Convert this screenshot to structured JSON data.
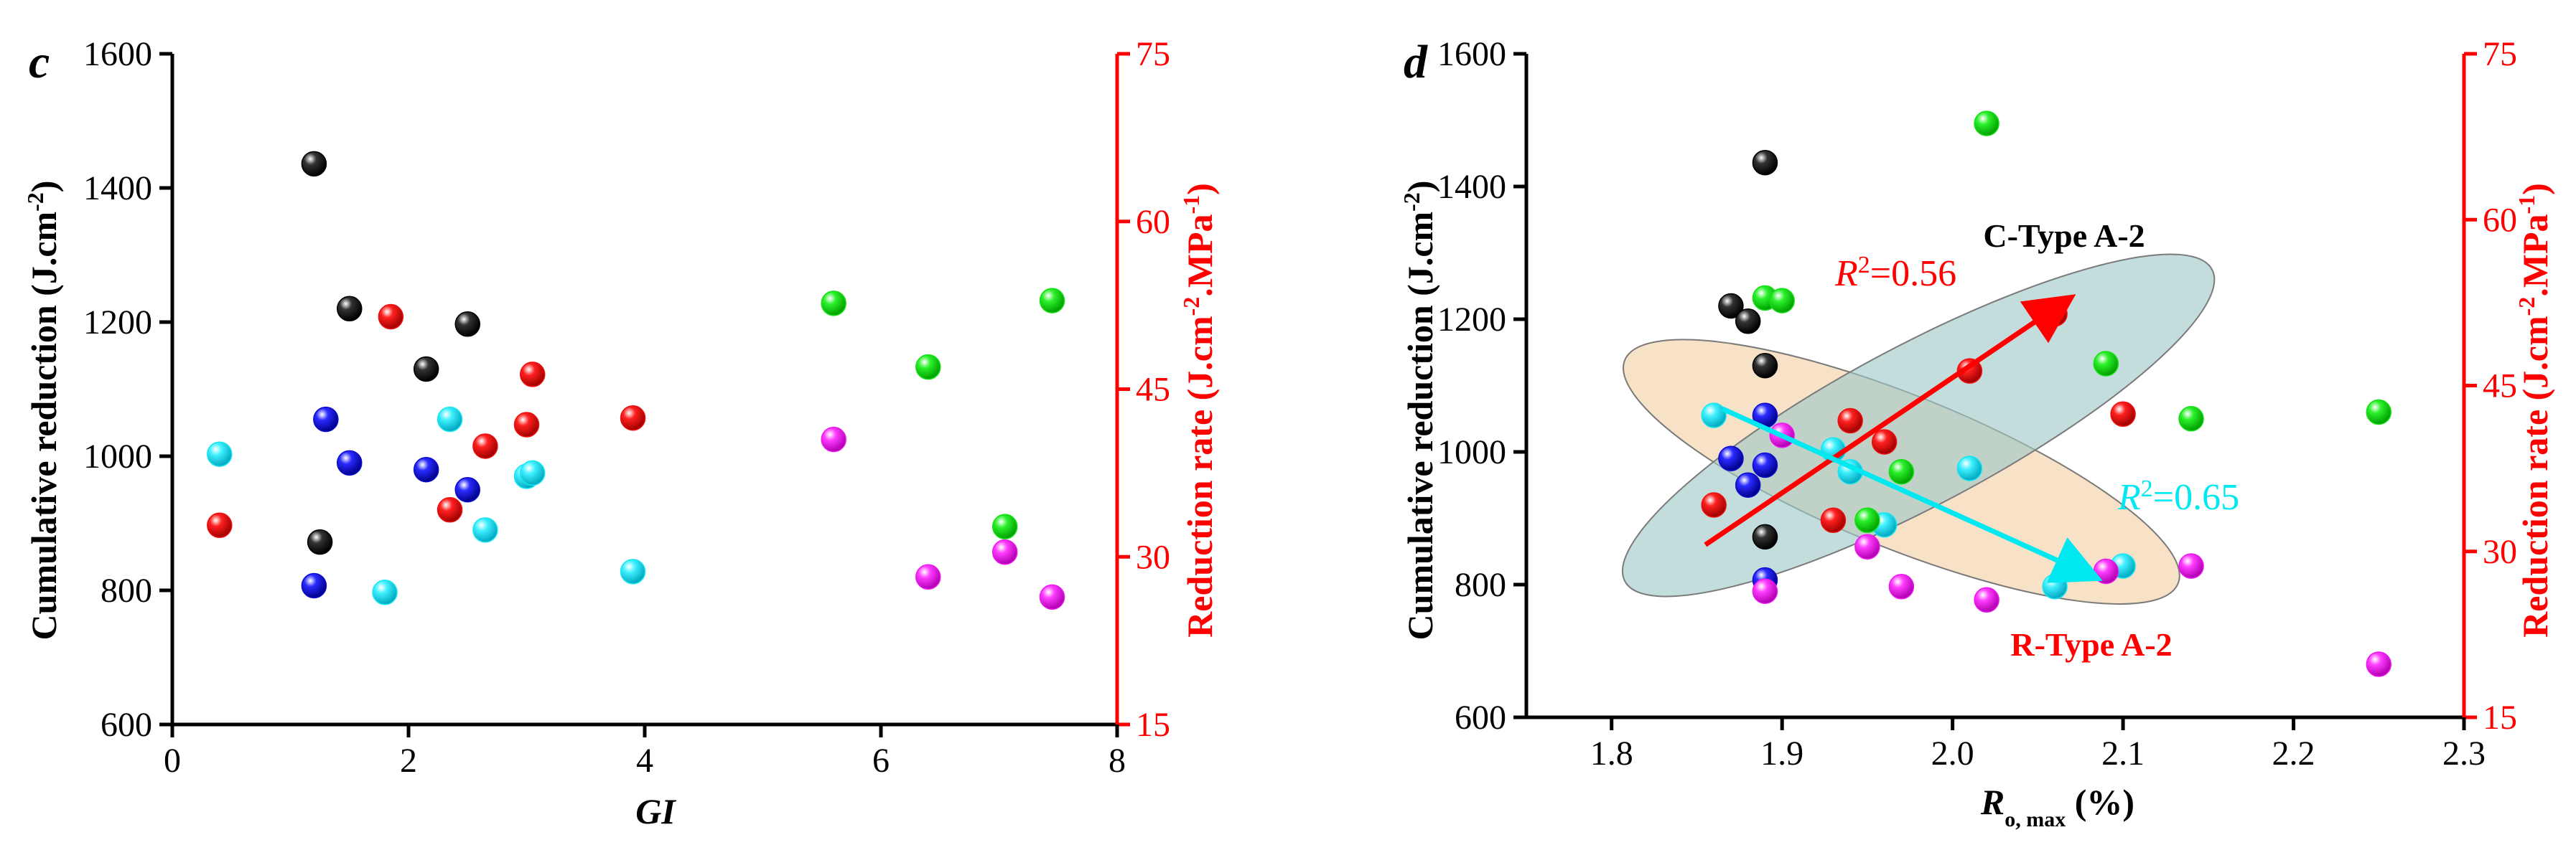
{
  "colors": {
    "black": "#000000",
    "blue": "#0b0bd0",
    "cyan": "#16e8f2",
    "red": "#ee1010",
    "green": "#14e014",
    "magenta": "#ee16ee",
    "axis_right": "#ff0000",
    "ellipse_c": "#9ec8c8",
    "ellipse_r": "#f2cea4",
    "r2_red": "#ff0000",
    "r2_cyan": "#00e8f0"
  },
  "chart_data": [
    {
      "type": "scatter",
      "panel_label": "c",
      "xlabel": "GI",
      "ylabel": "Cumulative reduction (J.cm",
      "ylabel_sup": "-2",
      "ylabel_end": ")",
      "y2label": "Reduction rate (J.cm",
      "y2label_sup1": "-2",
      "y2label_mid": ".MPa",
      "y2label_sup2": "-1",
      "y2label_end": ")",
      "xlim": [
        0,
        8
      ],
      "ylim": [
        600,
        1600
      ],
      "y2lim": [
        15,
        75
      ],
      "xticks": [
        "0",
        "2",
        "4",
        "6",
        "8"
      ],
      "yticks": [
        "600",
        "800",
        "1000",
        "1200",
        "1400",
        "1600"
      ],
      "y2ticks": [
        "15",
        "30",
        "45",
        "60",
        "75"
      ],
      "series": [
        {
          "name": "black",
          "points": [
            [
              1.2,
              1436
            ],
            [
              1.5,
              1220
            ],
            [
              2.15,
              1130
            ],
            [
              2.5,
              1197
            ],
            [
              1.25,
              872
            ]
          ]
        },
        {
          "name": "blue",
          "points": [
            [
              1.3,
              1055
            ],
            [
              1.5,
              990
            ],
            [
              2.15,
              980
            ],
            [
              2.5,
              950
            ],
            [
              1.2,
              807
            ]
          ]
        },
        {
          "name": "cyan",
          "points": [
            [
              0.4,
              1003
            ],
            [
              2.35,
              1055
            ],
            [
              3.0,
              970
            ],
            [
              3.05,
              975
            ],
            [
              2.65,
              890
            ],
            [
              1.8,
              797
            ],
            [
              3.9,
              828
            ]
          ]
        },
        {
          "name": "red",
          "points": [
            [
              0.4,
              897
            ],
            [
              1.85,
              1208
            ],
            [
              3.05,
              1122
            ],
            [
              3.0,
              1047
            ],
            [
              2.65,
              1015
            ],
            [
              2.35,
              920
            ],
            [
              3.9,
              1057
            ]
          ]
        },
        {
          "name": "green",
          "points": [
            [
              5.6,
              1228
            ],
            [
              7.45,
              1232
            ],
            [
              6.4,
              1133
            ],
            [
              7.05,
              895
            ]
          ]
        },
        {
          "name": "magenta",
          "points": [
            [
              5.6,
              1025
            ],
            [
              6.4,
              820
            ],
            [
              7.05,
              857
            ],
            [
              7.45,
              790
            ]
          ]
        }
      ]
    },
    {
      "type": "scatter",
      "panel_label": "d",
      "xlabel": "R",
      "xlabel_sub": "o, max",
      "xlabel_end": " (%)",
      "ylabel": "Cumulative reduction (J.cm",
      "ylabel_sup": "-2",
      "ylabel_end": ")",
      "y2label": "Reduction rate (J.cm",
      "y2label_sup1": "-2",
      "y2label_mid": ".MPa",
      "y2label_sup2": "-1",
      "y2label_end": ")",
      "xlim": [
        1.75,
        2.3
      ],
      "ylim": [
        600,
        1600
      ],
      "y2lim": [
        15,
        75
      ],
      "xticks": [
        "1.8",
        "1.9",
        "2.0",
        "2.1",
        "2.2",
        "2.3"
      ],
      "yticks": [
        "600",
        "800",
        "1000",
        "1200",
        "1400",
        "1600"
      ],
      "y2ticks": [
        "15",
        "30",
        "45",
        "60",
        "75"
      ],
      "series": [
        {
          "name": "black",
          "points": [
            [
              1.89,
              1436
            ],
            [
              1.87,
              1220
            ],
            [
              1.88,
              1197
            ],
            [
              1.89,
              1130
            ],
            [
              1.89,
              872
            ]
          ]
        },
        {
          "name": "blue",
          "points": [
            [
              1.89,
              1055
            ],
            [
              1.87,
              990
            ],
            [
              1.89,
              980
            ],
            [
              1.88,
              950
            ],
            [
              1.89,
              807
            ]
          ]
        },
        {
          "name": "cyan",
          "points": [
            [
              1.86,
              1055
            ],
            [
              1.93,
              1003
            ],
            [
              1.94,
              970
            ],
            [
              1.96,
              890
            ],
            [
              2.01,
              975
            ],
            [
              2.06,
              797
            ],
            [
              2.1,
              828
            ]
          ]
        },
        {
          "name": "red",
          "points": [
            [
              1.86,
              920
            ],
            [
              1.93,
              897
            ],
            [
              1.94,
              1047
            ],
            [
              1.96,
              1015
            ],
            [
              2.01,
              1122
            ],
            [
              2.06,
              1208
            ],
            [
              2.1,
              1057
            ]
          ]
        },
        {
          "name": "green",
          "points": [
            [
              2.02,
              1495
            ],
            [
              1.89,
              1232
            ],
            [
              1.9,
              1228
            ],
            [
              2.09,
              1133
            ],
            [
              2.14,
              1050
            ],
            [
              2.25,
              1060
            ],
            [
              1.97,
              970
            ],
            [
              1.95,
              897
            ]
          ]
        },
        {
          "name": "magenta",
          "points": [
            [
              1.9,
              1025
            ],
            [
              1.95,
              857
            ],
            [
              1.97,
              797
            ],
            [
              1.89,
              790
            ],
            [
              2.02,
              777
            ],
            [
              2.09,
              820
            ],
            [
              2.14,
              828
            ],
            [
              2.25,
              680
            ]
          ]
        }
      ],
      "annotations": {
        "c_type_label": "C-Type A-2",
        "r_type_label": "R-Type A-2",
        "r2_red_prefix": "R",
        "r2_red_sup": "2",
        "r2_red_value": "=0.56",
        "r2_cyan_prefix": "R",
        "r2_cyan_sup": "2",
        "r2_cyan_value": "=0.65",
        "red_arrow": {
          "from": [
            1.855,
            860
          ],
          "to": [
            2.065,
            1225
          ]
        },
        "cyan_arrow": {
          "from": [
            1.865,
            1065
          ],
          "to": [
            2.08,
            815
          ]
        },
        "ellipse_c": {
          "center": [
            1.98,
            1040
          ],
          "rx_data": 0.195,
          "ry_data": 120,
          "angle_deg": -28
        },
        "ellipse_r": {
          "center": [
            1.97,
            970
          ],
          "rx_data": 0.175,
          "ry_data": 115,
          "angle_deg": 22
        }
      }
    }
  ]
}
